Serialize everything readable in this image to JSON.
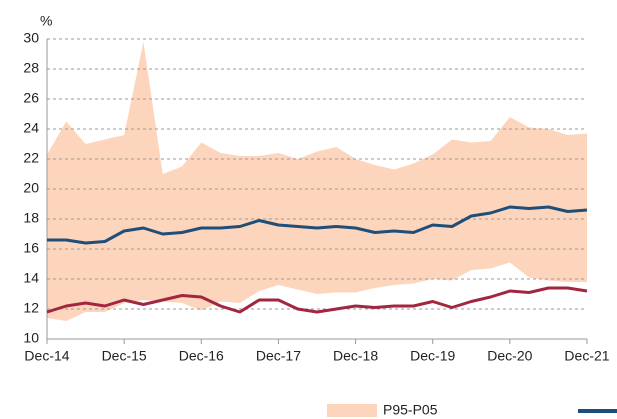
{
  "chart_data": {
    "type": "line",
    "y_label": "%",
    "categories": [
      "Dec-14",
      null,
      null,
      null,
      "Dec-15",
      null,
      null,
      null,
      "Dec-16",
      null,
      null,
      null,
      "Dec-17",
      null,
      null,
      null,
      "Dec-18",
      null,
      null,
      null,
      "Dec-19",
      null,
      null,
      null,
      "Dec-20",
      null,
      null,
      null,
      "Dec-21"
    ],
    "band": {
      "name": "P95-P05",
      "color": "#fdd5bd",
      "upper": [
        22.3,
        24.5,
        23.0,
        23.3,
        23.6,
        29.8,
        21.0,
        21.5,
        23.1,
        22.4,
        22.2,
        22.2,
        22.4,
        22.0,
        22.5,
        22.8,
        22.0,
        21.6,
        21.3,
        21.7,
        22.3,
        23.3,
        23.1,
        23.2,
        24.8,
        24.1,
        24.0,
        23.6,
        23.7
      ],
      "lower": [
        11.4,
        11.2,
        11.8,
        11.8,
        12.4,
        12.6,
        12.5,
        12.4,
        11.9,
        12.5,
        12.4,
        13.2,
        13.6,
        13.3,
        13.0,
        13.1,
        13.1,
        13.4,
        13.6,
        13.7,
        14.0,
        13.9,
        14.6,
        14.7,
        15.1,
        14.1,
        13.9,
        13.8,
        13.8
      ]
    },
    "series": [
      {
        "color": "#1f4e79",
        "values": [
          16.6,
          16.6,
          16.4,
          16.5,
          17.2,
          17.4,
          17.0,
          17.1,
          17.4,
          17.4,
          17.5,
          17.9,
          17.6,
          17.5,
          17.4,
          17.5,
          17.4,
          17.1,
          17.2,
          17.1,
          17.6,
          17.5,
          18.2,
          18.4,
          18.8,
          18.7,
          18.8,
          18.5,
          18.6
        ]
      },
      {
        "color": "#a3263f",
        "values": [
          11.8,
          12.2,
          12.4,
          12.2,
          12.6,
          12.3,
          12.6,
          12.9,
          12.8,
          12.2,
          11.8,
          12.6,
          12.6,
          12.0,
          11.8,
          12.0,
          12.2,
          12.1,
          12.2,
          12.2,
          12.5,
          12.1,
          12.5,
          12.8,
          13.2,
          13.1,
          13.4,
          13.4,
          13.2
        ]
      }
    ],
    "ylim": [
      10,
      30
    ],
    "yticks": [
      10,
      12,
      14,
      16,
      18,
      20,
      22,
      24,
      26,
      28,
      30
    ],
    "grid": true
  }
}
